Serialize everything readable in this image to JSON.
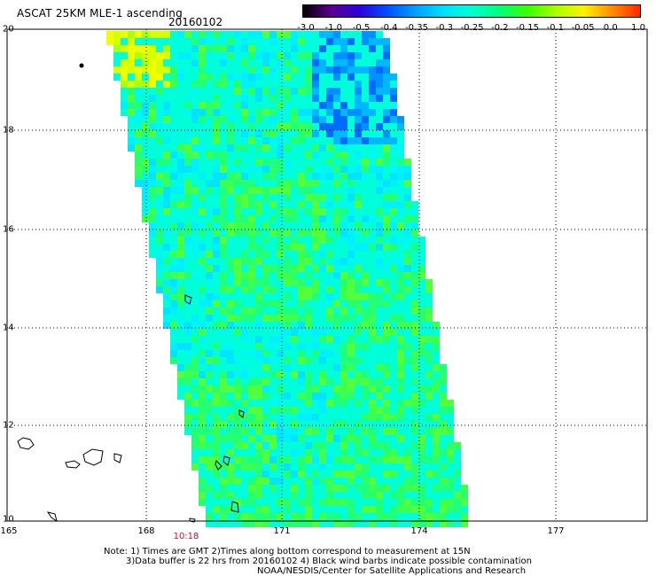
{
  "header": {
    "title": "ASCAT 25KM MLE-1 ascending",
    "date": "20160102"
  },
  "colorbar": {
    "labels": [
      "-3.0",
      "-1.0",
      "-0.5",
      "-0.4",
      "-0.35",
      "-0.3",
      "-0.25",
      "-0.2",
      "-0.15",
      "-0.1",
      "-0.05",
      "0.0",
      "1.0"
    ],
    "colors": [
      "#000000",
      "#5a0090",
      "#2c00d8",
      "#0050ff",
      "#00a2ff",
      "#00e0ff",
      "#00ffcf",
      "#00ff78",
      "#3cff00",
      "#aaff00",
      "#fff000",
      "#ff8c00",
      "#ff2800"
    ]
  },
  "map": {
    "lat_labels": [
      "20",
      "18",
      "16",
      "14",
      "12",
      "10"
    ],
    "lon_labels": [
      "165",
      "168",
      "171",
      "174",
      "177"
    ],
    "time_label": "10:18"
  },
  "notes": {
    "line1": "Note: 1) Times are GMT 2)Times along bottom correspond to measurement at 15N",
    "line2": "3)Data buffer is 22 hrs from 20160102 4) Black wind barbs indicate possible contamination",
    "line3": "NOAA/NESDIS/Center for Satellite Applications and Research"
  },
  "swath_palette": {
    "background": "#00ffd8",
    "greens": [
      "#1cff80",
      "#28ff6e",
      "#3cff50",
      "#52ff3a"
    ],
    "cyans": [
      "#00f0ff",
      "#00e4ff",
      "#00f8f0"
    ],
    "blues": [
      "#00b8ff",
      "#0090ff",
      "#006cff"
    ],
    "yellows": [
      "#d8ff00",
      "#f0ff00",
      "#a8ff10"
    ],
    "land_outline": "#000000"
  }
}
